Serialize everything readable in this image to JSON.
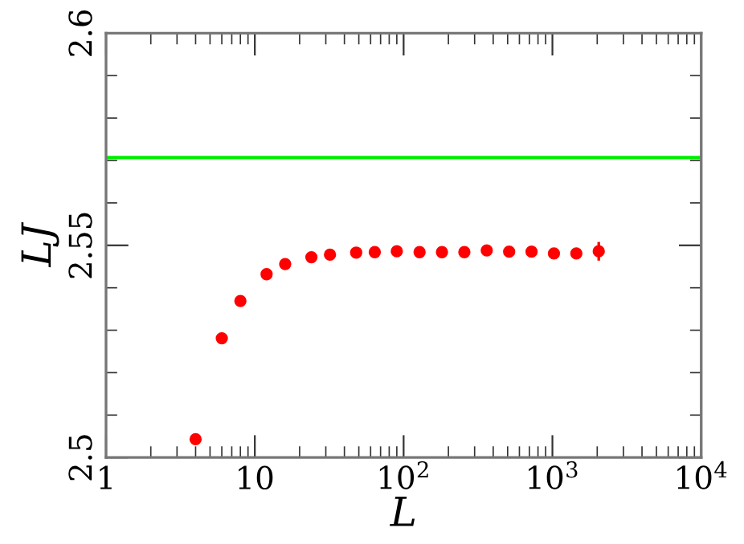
{
  "chart_data": {
    "type": "scatter",
    "xlabel": "L",
    "ylabel": "LJ",
    "log": "x",
    "x": [
      4,
      6,
      8,
      12,
      16,
      24,
      32,
      48,
      64,
      90,
      128,
      181,
      256,
      362,
      512,
      724,
      1024,
      1448,
      2048
    ],
    "series": [
      {
        "color": "#ff0000",
        "values": [
          2.5043,
          2.5281,
          2.5369,
          2.5432,
          2.5456,
          2.5472,
          2.5478,
          2.5483,
          2.5484,
          2.5486,
          2.5484,
          2.5484,
          2.5484,
          2.5488,
          2.5485,
          2.5485,
          2.5481,
          2.5481,
          2.5486
        ],
        "errors": [
          null,
          null,
          null,
          null,
          null,
          null,
          null,
          null,
          null,
          null,
          null,
          null,
          null,
          null,
          null,
          null,
          null,
          null,
          0.0022
        ]
      }
    ],
    "marker": "circle",
    "ref_lines": [
      {
        "axis": "y",
        "value": 2.5707,
        "color": "#00ee00",
        "line_style": "solid"
      }
    ],
    "xlim": [
      1,
      10000
    ],
    "ylim": [
      2.5,
      2.6
    ],
    "xticks": [
      1,
      10,
      {
        "value": 100,
        "label": "10$^{2}$"
      },
      {
        "value": 1000,
        "label": "10$^{3}$"
      },
      {
        "value": 10000,
        "label": "10$^{4}$"
      }
    ],
    "yticks": [
      2.5,
      2.55,
      2.6
    ],
    "grid": false,
    "legend": false
  }
}
